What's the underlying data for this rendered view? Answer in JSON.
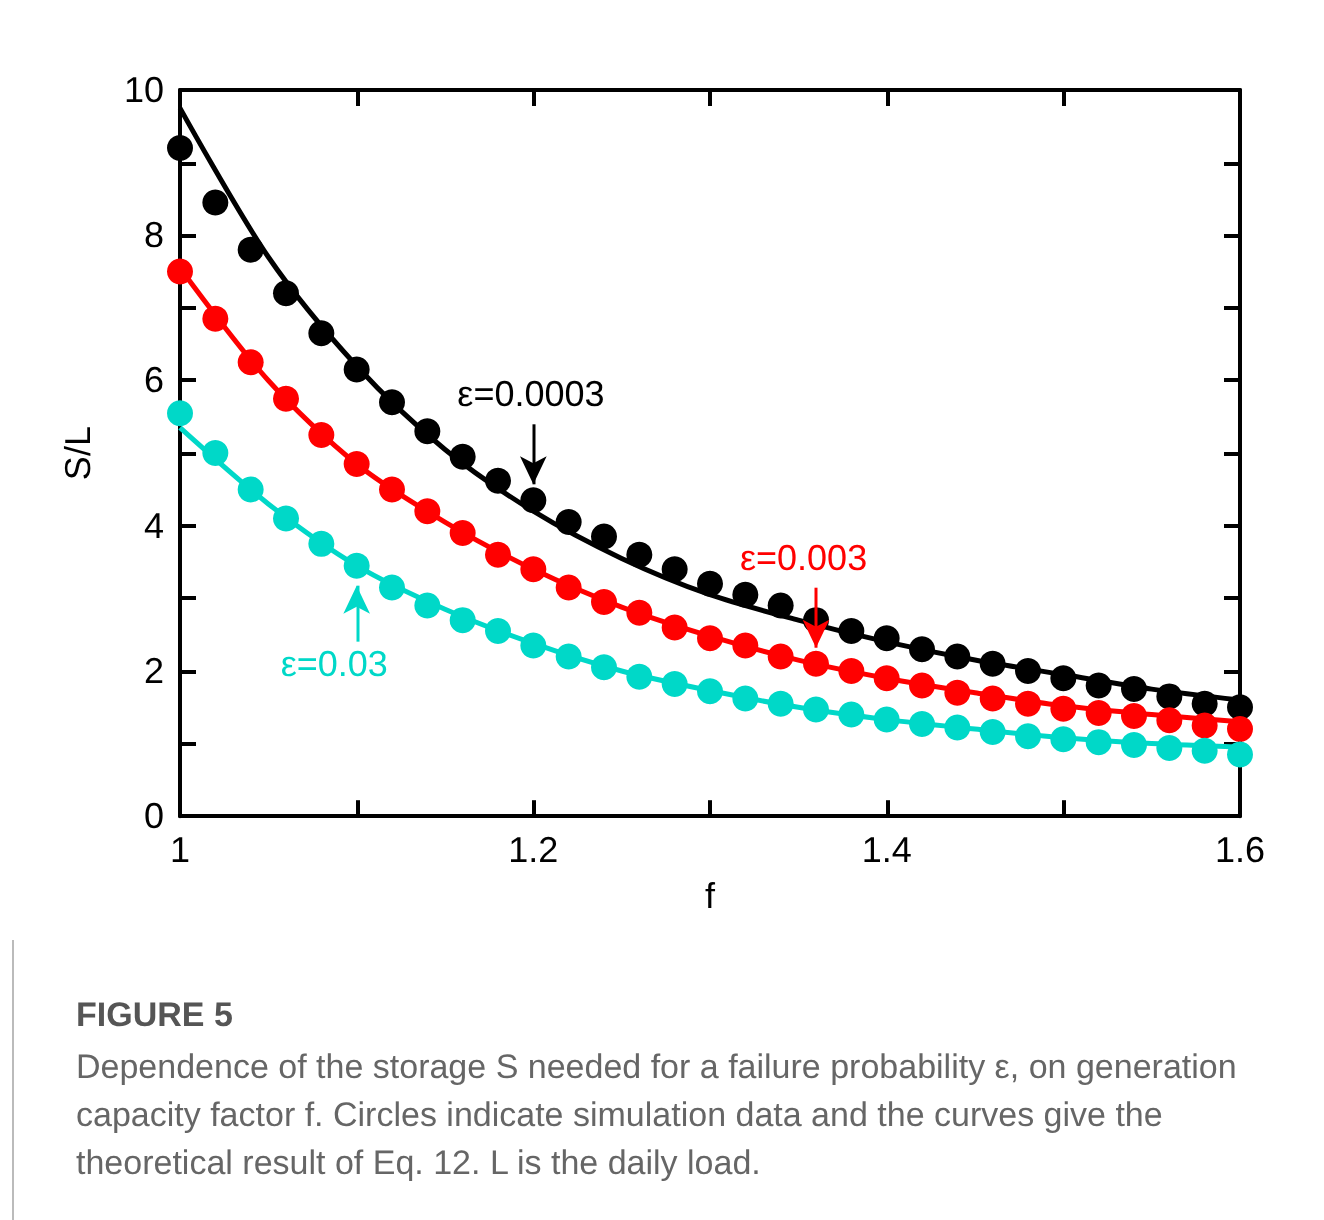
{
  "chart_data": {
    "type": "scatter",
    "title": "FIGURE 5",
    "xlabel": "f",
    "ylabel": "S/L",
    "x": [
      1.0,
      1.02,
      1.04,
      1.06,
      1.08,
      1.1,
      1.12,
      1.14,
      1.16,
      1.18,
      1.2,
      1.22,
      1.24,
      1.26,
      1.28,
      1.3,
      1.32,
      1.34,
      1.36,
      1.38,
      1.4,
      1.42,
      1.44,
      1.46,
      1.48,
      1.5,
      1.52,
      1.54,
      1.56,
      1.58,
      1.6
    ],
    "series": [
      {
        "marker": "circle",
        "color": "#000000",
        "values": [
          9.2,
          8.45,
          7.8,
          7.2,
          6.65,
          6.15,
          5.7,
          5.3,
          4.95,
          4.62,
          4.35,
          4.05,
          3.85,
          3.6,
          3.4,
          3.2,
          3.05,
          2.9,
          2.7,
          2.55,
          2.45,
          2.3,
          2.2,
          2.1,
          2.0,
          1.9,
          1.8,
          1.75,
          1.65,
          1.55,
          1.5
        ]
      },
      {
        "marker": "circle",
        "color": "#ff0000",
        "values": [
          7.5,
          6.85,
          6.25,
          5.75,
          5.25,
          4.85,
          4.5,
          4.2,
          3.9,
          3.6,
          3.4,
          3.15,
          2.95,
          2.8,
          2.6,
          2.45,
          2.35,
          2.2,
          2.1,
          2.0,
          1.9,
          1.8,
          1.7,
          1.62,
          1.55,
          1.48,
          1.42,
          1.38,
          1.32,
          1.25,
          1.2
        ]
      },
      {
        "marker": "circle",
        "color": "#00d8c8",
        "values": [
          5.55,
          5.0,
          4.5,
          4.1,
          3.75,
          3.45,
          3.15,
          2.9,
          2.7,
          2.55,
          2.35,
          2.2,
          2.05,
          1.92,
          1.82,
          1.72,
          1.62,
          1.55,
          1.47,
          1.4,
          1.33,
          1.27,
          1.22,
          1.16,
          1.1,
          1.06,
          1.02,
          0.98,
          0.94,
          0.9,
          0.85
        ]
      },
      {
        "type": "line",
        "marker": "none",
        "color": "#000000",
        "x": [
          1.0,
          1.05,
          1.1,
          1.15,
          1.2,
          1.25,
          1.3,
          1.35,
          1.4,
          1.45,
          1.5,
          1.55,
          1.6
        ],
        "values": [
          9.75,
          7.7,
          6.2,
          5.05,
          4.2,
          3.55,
          3.05,
          2.7,
          2.4,
          2.15,
          1.95,
          1.75,
          1.6
        ]
      },
      {
        "type": "line",
        "marker": "none",
        "color": "#ff0000",
        "x": [
          1.0,
          1.05,
          1.1,
          1.15,
          1.2,
          1.25,
          1.3,
          1.35,
          1.4,
          1.45,
          1.5,
          1.55,
          1.6
        ],
        "values": [
          7.55,
          6.0,
          4.85,
          4.05,
          3.4,
          2.88,
          2.48,
          2.15,
          1.9,
          1.7,
          1.52,
          1.4,
          1.3
        ]
      },
      {
        "type": "line",
        "marker": "none",
        "color": "#00d8c8",
        "x": [
          1.0,
          1.05,
          1.1,
          1.15,
          1.2,
          1.25,
          1.3,
          1.35,
          1.4,
          1.45,
          1.5,
          1.55,
          1.6
        ],
        "values": [
          5.35,
          4.3,
          3.45,
          2.85,
          2.38,
          2.0,
          1.73,
          1.5,
          1.33,
          1.2,
          1.08,
          1.0,
          0.95
        ]
      }
    ],
    "xlim": [
      1,
      1.6
    ],
    "xticks": [
      1,
      {
        "value": 1.1,
        "label": null
      },
      1.2,
      {
        "value": 1.3,
        "label": null
      },
      1.4,
      {
        "value": 1.5,
        "label": null
      },
      1.6
    ],
    "ylim": [
      0,
      10
    ],
    "yticks": [
      0,
      {
        "value": 1,
        "label": null
      },
      2,
      {
        "value": 3,
        "label": null
      },
      4,
      {
        "value": 5,
        "label": null
      },
      6,
      {
        "value": 7,
        "label": null
      },
      8,
      {
        "value": 9,
        "label": null
      },
      10
    ],
    "line_style": "solid",
    "grid": false,
    "annotations": [
      {
        "text": "ε=0.0003",
        "x": 1.2,
        "y": 4.35
      },
      {
        "text": "ε=0.003",
        "x": 1.36,
        "y": 2.1
      },
      {
        "text": "ε=0.03",
        "x": 1.1,
        "y": 3.45
      },
      "Dependence of the storage S needed for a failure probability ε, on generation capacity factor f. Circles indicate simulation data and the curves give the theoretical result of Eq. 12. L is the daily load."
    ]
  }
}
